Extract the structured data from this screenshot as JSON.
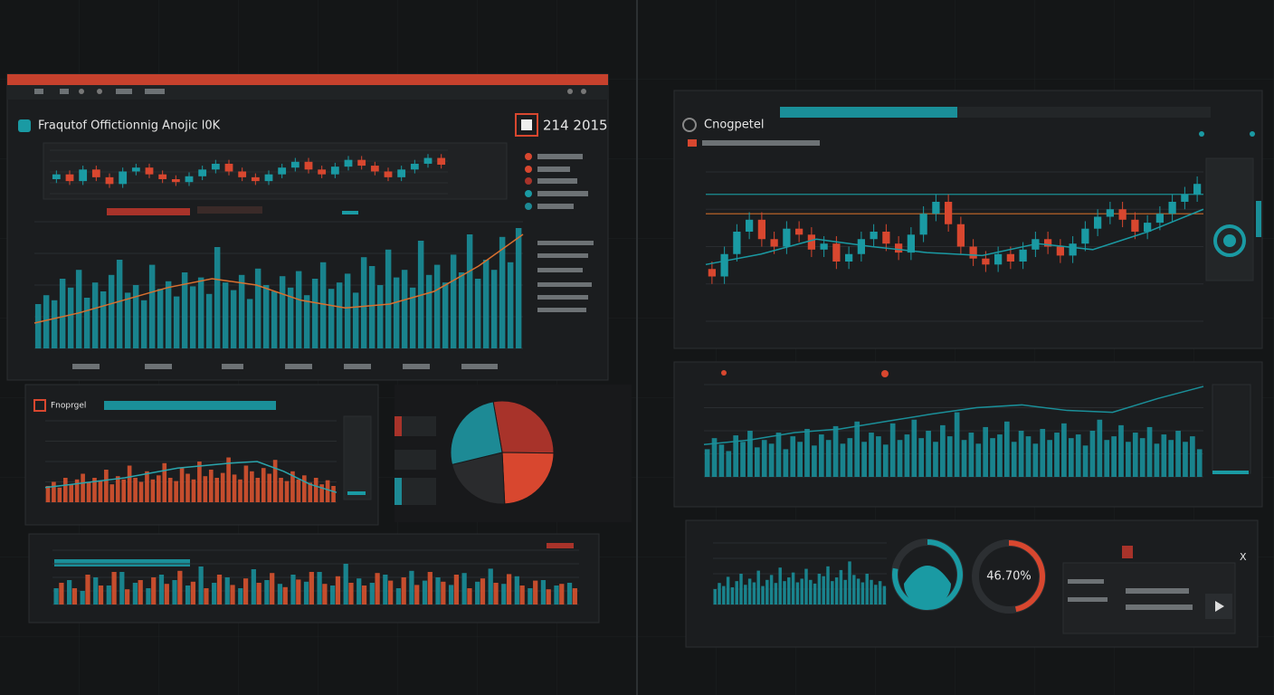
{
  "chart_data": [
    {
      "type": "candlestick",
      "title": "Fraqutof Offictionnig Anojic l0K",
      "subtitle": "214 2015",
      "open": [
        50,
        55,
        48,
        60,
        52,
        45,
        58,
        62,
        55,
        50,
        47,
        53,
        60,
        66,
        58,
        52,
        48,
        55,
        62,
        68,
        60,
        55,
        63,
        70,
        64,
        58,
        52,
        60,
        66,
        72
      ],
      "close": [
        55,
        48,
        60,
        52,
        45,
        58,
        62,
        55,
        50,
        47,
        53,
        60,
        66,
        58,
        52,
        48,
        55,
        62,
        68,
        60,
        55,
        63,
        70,
        64,
        58,
        52,
        60,
        66,
        72,
        65
      ],
      "high": [
        59,
        59,
        64,
        64,
        56,
        62,
        66,
        66,
        59,
        54,
        57,
        64,
        70,
        70,
        62,
        56,
        59,
        66,
        72,
        72,
        64,
        67,
        74,
        74,
        68,
        62,
        64,
        70,
        76,
        76
      ],
      "low": [
        46,
        44,
        44,
        48,
        41,
        41,
        54,
        51,
        46,
        43,
        43,
        49,
        56,
        54,
        48,
        44,
        44,
        51,
        58,
        56,
        51,
        51,
        59,
        60,
        54,
        48,
        48,
        56,
        62,
        61
      ],
      "ylim": [
        35,
        80
      ],
      "up_color": "#1a9aa3",
      "down_color": "#d8472f"
    },
    {
      "type": "bar",
      "color": "#1a8f99",
      "values": [
        35,
        42,
        38,
        55,
        48,
        62,
        40,
        52,
        45,
        58,
        70,
        44,
        50,
        38,
        66,
        47,
        53,
        41,
        60,
        49,
        56,
        43,
        80,
        52,
        46,
        58,
        39,
        63,
        50,
        45,
        57,
        48,
        61,
        42,
        55,
        68,
        47,
        52,
        59,
        44,
        72,
        65,
        50,
        78,
        56,
        62,
        48,
        85,
        58,
        66,
        52,
        74,
        60,
        90,
        55,
        70,
        62,
        88,
        68,
        95
      ],
      "trend": [
        20,
        28,
        38,
        48,
        55,
        50,
        38,
        32,
        35,
        45,
        65,
        90
      ],
      "trend_color": "#d8702f",
      "ylim": [
        0,
        100
      ]
    },
    {
      "type": "bar",
      "color": "#d8532f",
      "values": [
        20,
        25,
        18,
        30,
        22,
        28,
        35,
        24,
        30,
        26,
        40,
        22,
        32,
        28,
        45,
        30,
        25,
        38,
        28,
        33,
        48,
        30,
        26,
        42,
        35,
        28,
        50,
        32,
        40,
        30,
        36,
        55,
        34,
        28,
        45,
        38,
        30,
        42,
        35,
        52,
        30,
        26,
        38,
        28,
        33,
        24,
        30,
        22,
        27,
        20
      ],
      "trend": [
        18,
        22,
        26,
        30,
        36,
        42,
        45,
        48,
        50,
        38,
        22,
        12
      ],
      "trend_color": "#2aa5ad",
      "ylim": [
        0,
        100
      ]
    },
    {
      "type": "pie",
      "values": [
        28,
        24,
        22,
        26
      ],
      "colors": [
        "#a8332a",
        "#d8472f",
        "#2a2b2d",
        "#1d8a95"
      ]
    },
    {
      "type": "bar",
      "ylim": [
        0,
        100
      ],
      "series": [
        {
          "color": "#1a8f99",
          "values": [
            30,
            45,
            25,
            50,
            35,
            60,
            40,
            30,
            55,
            45,
            35,
            70,
            40,
            50,
            30,
            65,
            45,
            38,
            55,
            42,
            60,
            35,
            75,
            48,
            40,
            55,
            30,
            62,
            44,
            50,
            36,
            58,
            42,
            66,
            38,
            52,
            30,
            45,
            35,
            40
          ]
        },
        {
          "color": "#d8532f",
          "values": [
            40,
            30,
            55,
            35,
            60,
            28,
            45,
            50,
            38,
            62,
            42,
            30,
            55,
            36,
            48,
            40,
            58,
            32,
            46,
            60,
            38,
            52,
            40,
            35,
            58,
            44,
            50,
            36,
            60,
            42,
            55,
            30,
            48,
            40,
            56,
            35,
            44,
            28,
            38,
            30
          ]
        }
      ]
    },
    {
      "type": "candlestick",
      "title": "Cnogpetel",
      "open": [
        35,
        30,
        45,
        60,
        68,
        55,
        50,
        62,
        58,
        48,
        52,
        40,
        45,
        55,
        60,
        52,
        46,
        58,
        72,
        80,
        65,
        50,
        42,
        38,
        45,
        40,
        48,
        55,
        50,
        44,
        52,
        62,
        70,
        75,
        68,
        60,
        66,
        72,
        80,
        85
      ],
      "close": [
        30,
        45,
        60,
        68,
        55,
        50,
        62,
        58,
        48,
        52,
        40,
        45,
        55,
        60,
        52,
        46,
        58,
        72,
        80,
        65,
        50,
        42,
        38,
        45,
        40,
        48,
        55,
        50,
        44,
        52,
        62,
        70,
        75,
        68,
        60,
        66,
        72,
        80,
        85,
        92
      ],
      "high": [
        40,
        50,
        65,
        73,
        73,
        60,
        67,
        67,
        63,
        57,
        57,
        50,
        60,
        65,
        65,
        57,
        63,
        77,
        85,
        85,
        70,
        55,
        47,
        50,
        50,
        53,
        60,
        60,
        55,
        57,
        67,
        75,
        80,
        80,
        73,
        71,
        77,
        85,
        90,
        97
      ],
      "low": [
        25,
        25,
        40,
        55,
        50,
        45,
        45,
        53,
        43,
        43,
        35,
        35,
        40,
        50,
        47,
        41,
        41,
        53,
        67,
        60,
        45,
        37,
        33,
        33,
        35,
        35,
        43,
        45,
        39,
        39,
        47,
        57,
        65,
        63,
        55,
        55,
        61,
        67,
        75,
        80
      ],
      "ylim": [
        0,
        100
      ],
      "up_color": "#1a9aa3",
      "down_color": "#d8472f",
      "reference_lines": [
        {
          "value": 85,
          "color": "#1a8f96"
        },
        {
          "value": 72,
          "color": "#c96a2a"
        }
      ],
      "trend": [
        38,
        45,
        55,
        50,
        46,
        44,
        52,
        48,
        60,
        75
      ],
      "trend_color": "#1a9aa3"
    },
    {
      "type": "bar",
      "color": "#1a8f99",
      "values": [
        30,
        42,
        35,
        28,
        45,
        38,
        50,
        32,
        40,
        36,
        48,
        30,
        44,
        38,
        52,
        34,
        46,
        40,
        55,
        36,
        42,
        60,
        38,
        48,
        44,
        35,
        58,
        40,
        46,
        62,
        42,
        50,
        38,
        56,
        44,
        70,
        40,
        48,
        36,
        54,
        42,
        46,
        60,
        38,
        50,
        44,
        36,
        52,
        40,
        48,
        58,
        42,
        46,
        34,
        50,
        62,
        40,
        44,
        56,
        38,
        48,
        42,
        54,
        36,
        46,
        40,
        50,
        38,
        44,
        30
      ],
      "trend": [
        35,
        40,
        48,
        52,
        60,
        68,
        75,
        78,
        72,
        70,
        85,
        98
      ],
      "trend_color": "#1a8f99",
      "ylim": [
        0,
        100
      ]
    },
    {
      "type": "bar",
      "color": "#1a8f99",
      "values": [
        25,
        35,
        30,
        45,
        28,
        38,
        50,
        32,
        42,
        36,
        55,
        30,
        40,
        48,
        35,
        60,
        38,
        44,
        52,
        36,
        42,
        58,
        40,
        34,
        50,
        46,
        62,
        38,
        44,
        56,
        40,
        70,
        48,
        42,
        36,
        50,
        40,
        32,
        38,
        30
      ],
      "ylim": [
        0,
        100
      ]
    },
    {
      "type": "gauge",
      "values": [
        78
      ],
      "ylim": [
        0,
        100
      ],
      "color": "#1a9aa3"
    },
    {
      "type": "gauge",
      "values": [
        46.7
      ],
      "value_labels": [
        "46.70%"
      ],
      "ylim": [
        0,
        100
      ],
      "color": "#d8472f"
    }
  ],
  "texts": {
    "panel_label": "Fnoprgel",
    "close": "X"
  }
}
